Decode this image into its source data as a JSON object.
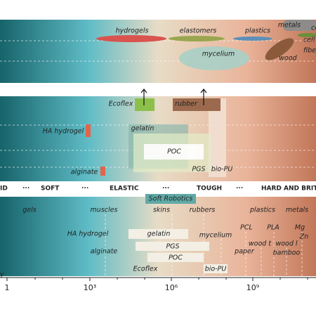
{
  "panel_top": {
    "labels": [
      "hydrogels",
      "elastomers",
      "plastics",
      "metals",
      "ce",
      "cell",
      "fibe",
      "mycelium",
      "wood"
    ]
  },
  "panel_middle": {
    "labels": [
      "Ecoflex",
      "rubber",
      "HA hydrogel",
      "gelatin",
      "POC",
      "PGS",
      "bio-PU",
      "alginate"
    ]
  },
  "scale_bar": {
    "labels": [
      "ID",
      "···",
      "SOFT",
      "···",
      "ELASTIC",
      "···",
      "TOUGH",
      "···",
      "HARD AND BRITT"
    ]
  },
  "panel_bottom": {
    "boxed": [
      "Soft Robotics",
      "gelatin",
      "PGS",
      "POC",
      "bio-PU"
    ],
    "labels": [
      "gels",
      "muscles",
      "skins",
      "rubbers",
      "plastics",
      "metals",
      "HA hydrogel",
      "mycelium",
      "PCL",
      "PLA",
      "Mg",
      "Zn",
      "wood t",
      "wood l",
      "paper",
      "alginate",
      "bamboo",
      "Ecoflex",
      "y"
    ]
  },
  "axis": {
    "ticks": [
      "1",
      "10³",
      "10⁶",
      "10⁹"
    ]
  }
}
